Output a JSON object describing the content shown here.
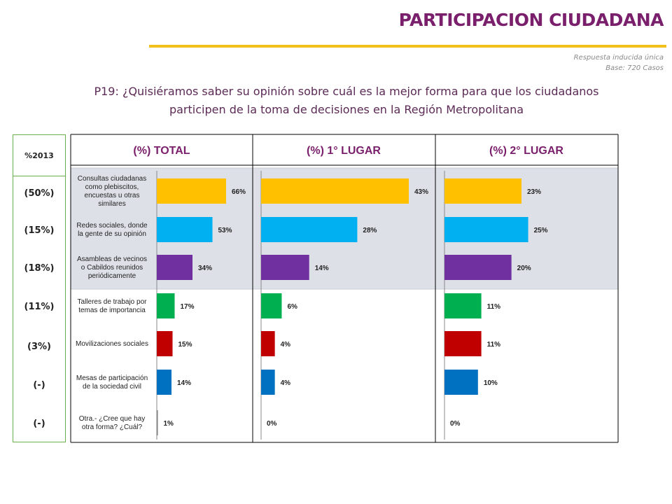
{
  "header": {
    "title": "PARTICIPACION CIUDADANA",
    "note_line1": "Respuesta inducida única",
    "note_line2": "Base: 720 Casos"
  },
  "question": {
    "line1": "P19: ¿Quisiéramos saber su opinión sobre cuál es la mejor forma para que los ciudadanos",
    "line2": "participen de la toma de decisiones en la Región Metropolitana"
  },
  "year_column": {
    "header": "%2013",
    "values": [
      "(50%)",
      "(15%)",
      "(18%)",
      "(11%)",
      "(3%)",
      "(-)",
      "(-)"
    ]
  },
  "colors": {
    "title": "#7a1f6b",
    "rule": "#f2c01a",
    "highlight": "#dde1e7",
    "bars": [
      "#ffc000",
      "#00b0f0",
      "#7030a0",
      "#00b050",
      "#c00000",
      "#0070c0",
      "#7f7f7f"
    ]
  },
  "chart_data": {
    "type": "bar",
    "orientation": "horizontal",
    "categories": [
      [
        "Consultas ciudadanas",
        "como plebiscitos,",
        "encuestas u otras",
        "similares"
      ],
      [
        "Redes sociales, donde",
        "la gente de su opinión"
      ],
      [
        "Asambleas de vecinos",
        "o Cabildos reunidos",
        "periódicamente"
      ],
      [
        "Talleres de trabajo por",
        "temas de importancia"
      ],
      [
        "Movilizaciones sociales"
      ],
      [
        "Mesas de participación",
        "de la sociedad civil"
      ],
      [
        "Otra.- ¿Cree que hay",
        "otra forma? ¿Cuál?"
      ]
    ],
    "series": [
      {
        "name": "(%) TOTAL",
        "values": [
          66,
          53,
          34,
          17,
          15,
          14,
          1
        ]
      },
      {
        "name": "(%) 1° LUGAR",
        "values": [
          43,
          28,
          14,
          6,
          4,
          4,
          0
        ]
      },
      {
        "name": "(%) 2° LUGAR",
        "values": [
          23,
          25,
          20,
          11,
          11,
          10,
          0
        ]
      }
    ],
    "value_suffix": "%",
    "xlim": [
      [
        0,
        80
      ],
      [
        0,
        50
      ],
      [
        0,
        30
      ]
    ],
    "highlighted_categories": [
      0,
      1,
      2
    ]
  }
}
